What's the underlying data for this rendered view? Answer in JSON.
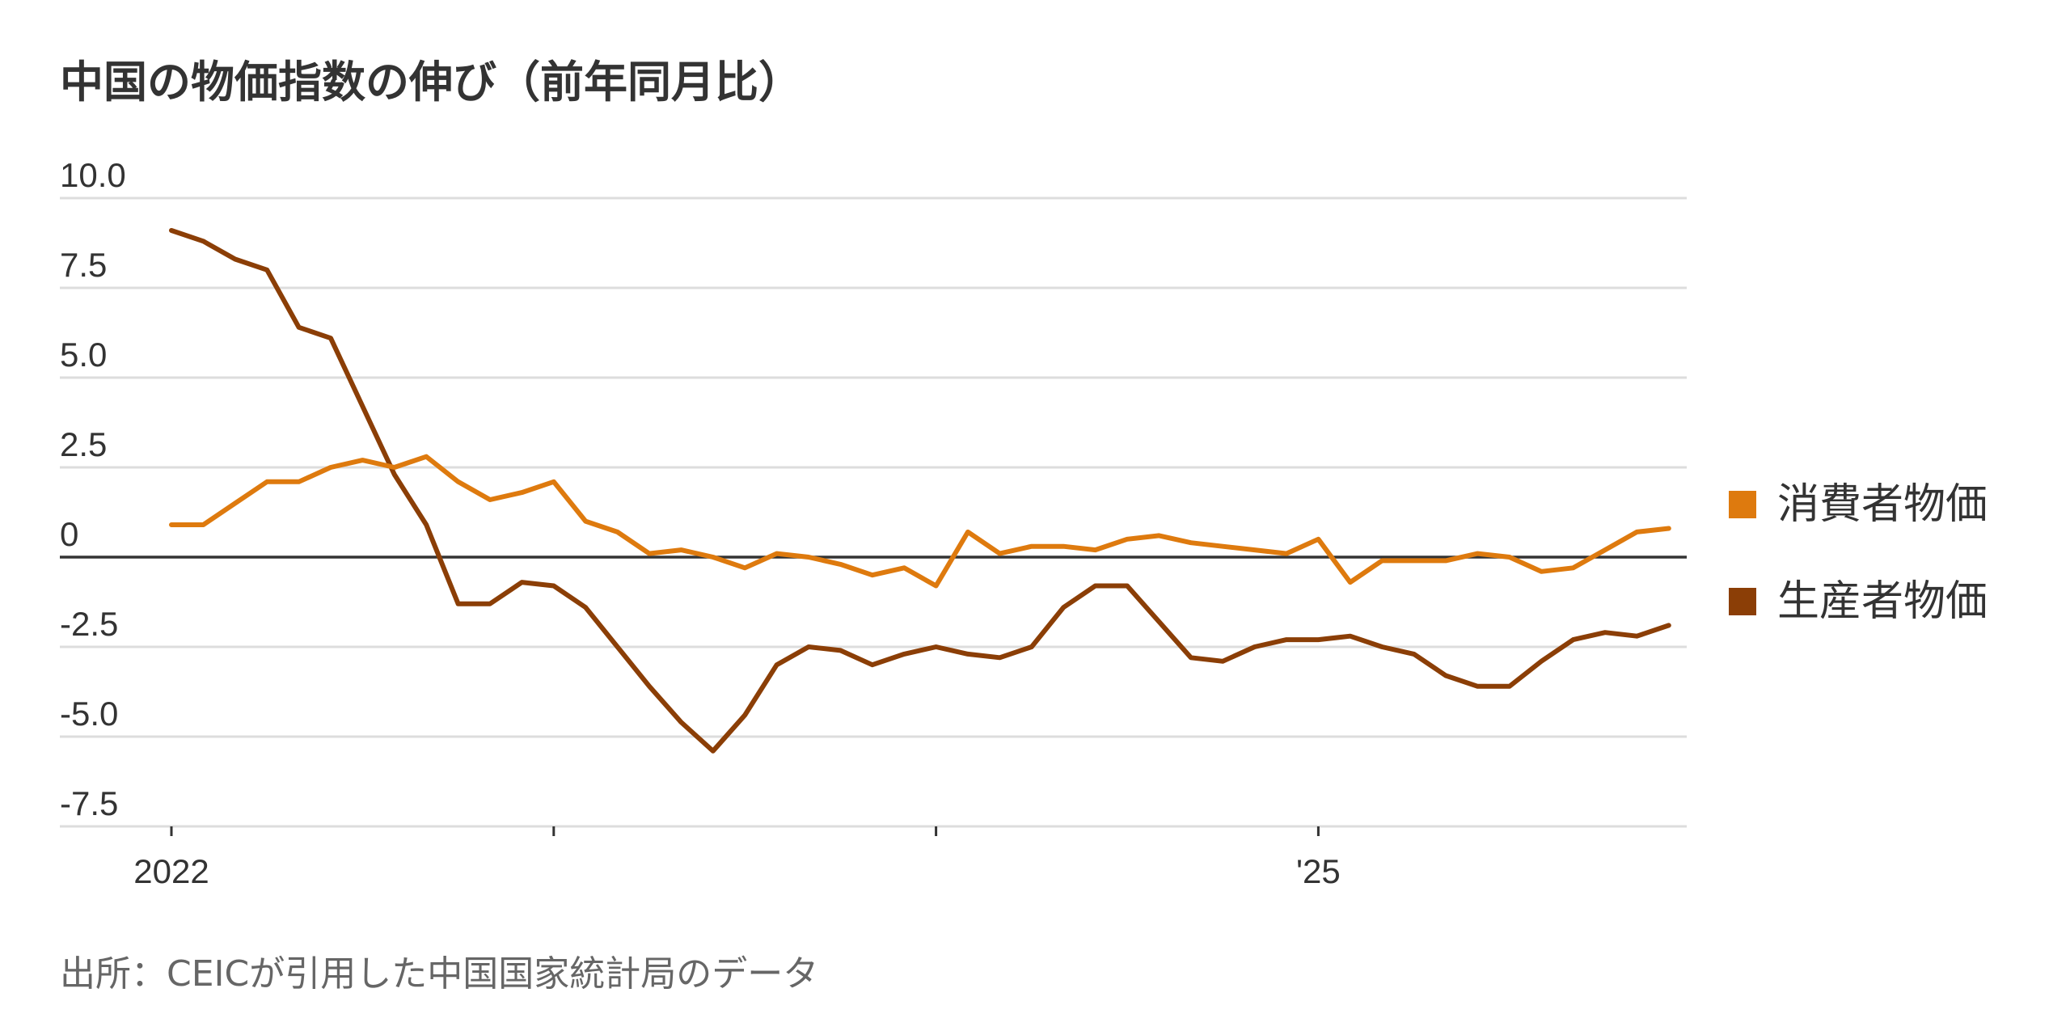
{
  "title": "中国の物価指数の伸び（前年同月比）",
  "source": "出所：CEICが引用した中国国家統計局のデータ",
  "colors": {
    "cpi": "#DE7A0E",
    "ppi": "#8B3E06",
    "grid": "#DDDDDD",
    "zero": "#333333"
  },
  "chart_data": {
    "type": "line",
    "title": "中国の物価指数の伸び（前年同月比）",
    "xlabel": "",
    "ylabel": "",
    "ylim": [
      -7.5,
      10.0
    ],
    "yticks": [
      10.0,
      7.5,
      5.0,
      2.5,
      0,
      -2.5,
      -5.0,
      -7.5
    ],
    "ytick_labels": [
      "10.0",
      "7.5",
      "5.0",
      "2.5",
      "0",
      "-2.5",
      "-5.0",
      "-7.5"
    ],
    "x": [
      "2022-01",
      "2022-02",
      "2022-03",
      "2022-04",
      "2022-05",
      "2022-06",
      "2022-07",
      "2022-08",
      "2022-09",
      "2022-10",
      "2022-11",
      "2022-12",
      "2023-01",
      "2023-02",
      "2023-03",
      "2023-04",
      "2023-05",
      "2023-06",
      "2023-07",
      "2023-08",
      "2023-09",
      "2023-10",
      "2023-11",
      "2023-12",
      "2024-01",
      "2024-02",
      "2024-03",
      "2024-04",
      "2024-05",
      "2024-06",
      "2024-07",
      "2024-08",
      "2024-09",
      "2024-10",
      "2024-11",
      "2024-12",
      "2025-01",
      "2025-02",
      "2025-03",
      "2025-04",
      "2025-05",
      "2025-06",
      "2025-07",
      "2025-08",
      "2025-09",
      "2025-10",
      "2025-11",
      "2025-12"
    ],
    "xticks": [
      {
        "x": "2022-01",
        "label": "2022"
      },
      {
        "x": "2023-01",
        "label": ""
      },
      {
        "x": "2024-01",
        "label": ""
      },
      {
        "x": "2025-01",
        "label": "'25"
      }
    ],
    "legend": "right",
    "grid": true,
    "series": [
      {
        "name": "消費者物価",
        "color": "#DE7A0E",
        "values": [
          0.9,
          0.9,
          1.5,
          2.1,
          2.1,
          2.5,
          2.7,
          2.5,
          2.8,
          2.1,
          1.6,
          1.8,
          2.1,
          1.0,
          0.7,
          0.1,
          0.2,
          0.0,
          -0.3,
          0.1,
          0.0,
          -0.2,
          -0.5,
          -0.3,
          -0.8,
          0.7,
          0.1,
          0.3,
          0.3,
          0.2,
          0.5,
          0.6,
          0.4,
          0.3,
          0.2,
          0.1,
          0.5,
          -0.7,
          -0.1,
          -0.1,
          -0.1,
          0.1,
          0.0,
          -0.4,
          -0.3,
          0.2,
          0.7,
          0.8
        ]
      },
      {
        "name": "生産者物価",
        "color": "#8B3E06",
        "values": [
          9.1,
          8.8,
          8.3,
          8.0,
          6.4,
          6.1,
          4.2,
          2.3,
          0.9,
          -1.3,
          -1.3,
          -0.7,
          -0.8,
          -1.4,
          -2.5,
          -3.6,
          -4.6,
          -5.4,
          -4.4,
          -3.0,
          -2.5,
          -2.6,
          -3.0,
          -2.7,
          -2.5,
          -2.7,
          -2.8,
          -2.5,
          -1.4,
          -0.8,
          -0.8,
          -1.8,
          -2.8,
          -2.9,
          -2.5,
          -2.3,
          -2.3,
          -2.2,
          -2.5,
          -2.7,
          -3.3,
          -3.6,
          -3.6,
          -2.9,
          -2.3,
          -2.1,
          -2.2,
          -1.9
        ]
      }
    ]
  }
}
